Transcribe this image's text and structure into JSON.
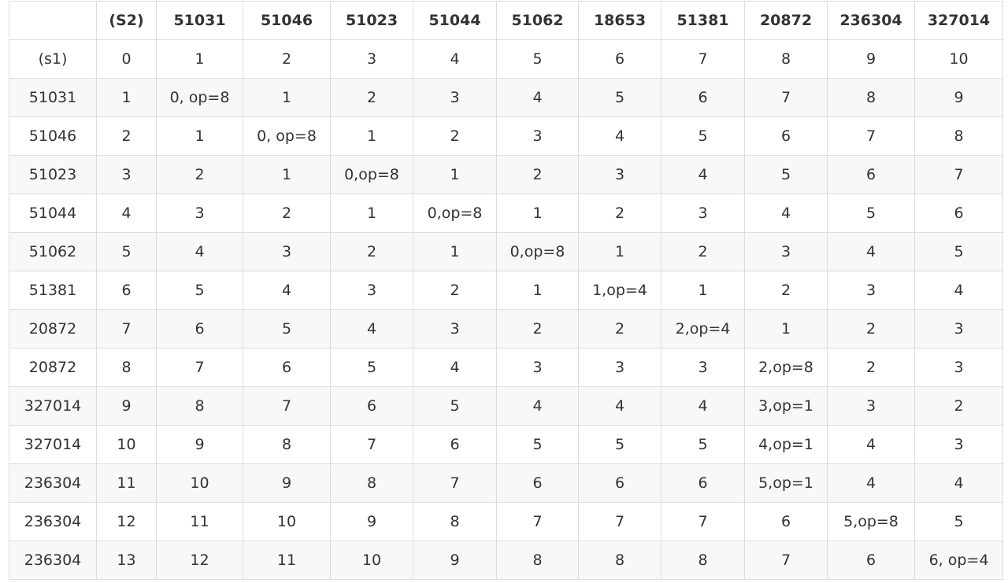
{
  "table": {
    "header": [
      "",
      "(S2)",
      "51031",
      "51046",
      "51023",
      "51044",
      "51062",
      "18653",
      "51381",
      "20872",
      "236304",
      "327014"
    ],
    "rows": [
      [
        "(s1)",
        "0",
        "1",
        "2",
        "3",
        "4",
        "5",
        "6",
        "7",
        "8",
        "9",
        "10"
      ],
      [
        "51031",
        "1",
        "0, op=8",
        "1",
        "2",
        "3",
        "4",
        "5",
        "6",
        "7",
        "8",
        "9"
      ],
      [
        "51046",
        "2",
        "1",
        "0, op=8",
        "1",
        "2",
        "3",
        "4",
        "5",
        "6",
        "7",
        "8"
      ],
      [
        "51023",
        "3",
        "2",
        "1",
        "0,op=8",
        "1",
        "2",
        "3",
        "4",
        "5",
        "6",
        "7"
      ],
      [
        "51044",
        "4",
        "3",
        "2",
        "1",
        "0,op=8",
        "1",
        "2",
        "3",
        "4",
        "5",
        "6"
      ],
      [
        "51062",
        "5",
        "4",
        "3",
        "2",
        "1",
        "0,op=8",
        "1",
        "2",
        "3",
        "4",
        "5"
      ],
      [
        "51381",
        "6",
        "5",
        "4",
        "3",
        "2",
        "1",
        "1,op=4",
        "1",
        "2",
        "3",
        "4"
      ],
      [
        "20872",
        "7",
        "6",
        "5",
        "4",
        "3",
        "2",
        "2",
        "2,op=4",
        "1",
        "2",
        "3"
      ],
      [
        "20872",
        "8",
        "7",
        "6",
        "5",
        "4",
        "3",
        "3",
        "3",
        "2,op=8",
        "2",
        "3"
      ],
      [
        "327014",
        "9",
        "8",
        "7",
        "6",
        "5",
        "4",
        "4",
        "4",
        "3,op=1",
        "3",
        "2"
      ],
      [
        "327014",
        "10",
        "9",
        "8",
        "7",
        "6",
        "5",
        "5",
        "5",
        "4,op=1",
        "4",
        "3"
      ],
      [
        "236304",
        "11",
        "10",
        "9",
        "8",
        "7",
        "6",
        "6",
        "6",
        "5,op=1",
        "4",
        "4"
      ],
      [
        "236304",
        "12",
        "11",
        "10",
        "9",
        "8",
        "7",
        "7",
        "7",
        "6",
        "5,op=8",
        "5"
      ],
      [
        "236304",
        "13",
        "12",
        "11",
        "10",
        "9",
        "8",
        "8",
        "8",
        "7",
        "6",
        "6, op=4"
      ]
    ]
  }
}
